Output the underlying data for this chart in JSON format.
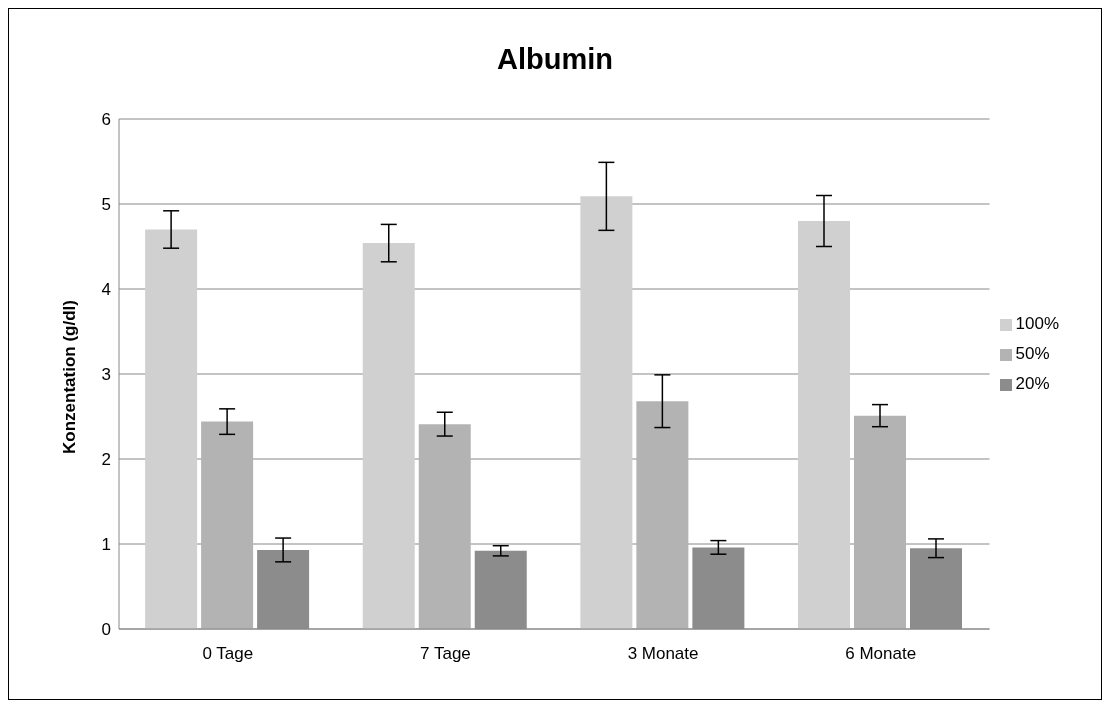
{
  "chart_data": {
    "type": "bar",
    "title": "Albumin",
    "ylabel": "Konzentation (g/dl)",
    "categories": [
      "0 Tage",
      "7 Tage",
      "3 Monate",
      "6 Monate"
    ],
    "series": [
      {
        "name": "100%",
        "color": "#d0d0d0",
        "values": [
          4.7,
          4.54,
          5.09,
          4.8
        ],
        "errors": [
          0.22,
          0.22,
          0.4,
          0.3
        ]
      },
      {
        "name": "50%",
        "color": "#b3b3b3",
        "values": [
          2.44,
          2.41,
          2.68,
          2.51
        ],
        "errors": [
          0.15,
          0.14,
          0.31,
          0.13
        ]
      },
      {
        "name": "20%",
        "color": "#8c8c8c",
        "values": [
          0.93,
          0.92,
          0.96,
          0.95
        ],
        "errors": [
          0.14,
          0.06,
          0.08,
          0.11
        ]
      }
    ],
    "ylim": [
      0,
      6
    ],
    "yticks": [
      0,
      1,
      2,
      3,
      4,
      5,
      6
    ],
    "grid": "y",
    "legend": "right"
  }
}
